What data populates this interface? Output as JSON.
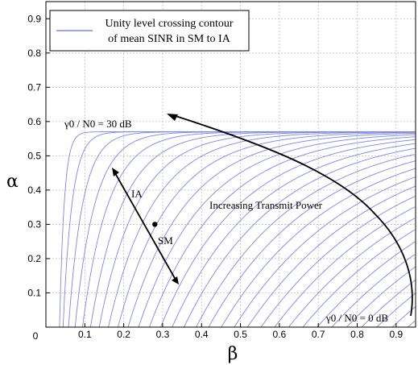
{
  "chart_data": {
    "type": "line",
    "title": "",
    "xlabel": "β",
    "ylabel": "α",
    "xlim": [
      0,
      0.95
    ],
    "ylim": [
      0,
      0.95
    ],
    "x_ticks": [
      "0",
      "0.1",
      "0.2",
      "0.3",
      "0.4",
      "0.5",
      "0.6",
      "0.7",
      "0.8",
      "0.9"
    ],
    "y_ticks": [
      "0.1",
      "0.2",
      "0.3",
      "0.4",
      "0.5",
      "0.6",
      "0.7",
      "0.8",
      "0.9"
    ],
    "grid": true,
    "legend": {
      "position": "top-left",
      "lines": [
        "Unity level crossing contour",
        "of mean SINR in SM to IA"
      ]
    },
    "series_color": "#7a88e8",
    "series_label": "Unity level crossing contour of mean SINR in SM to IA",
    "contours": {
      "count": 31,
      "asymptote_alpha": 0.57,
      "onset_beta_min": 0.035,
      "onset_beta_max": 0.93,
      "snr_db_range": [
        0,
        30
      ]
    },
    "annotations": {
      "top_curve_label": "γ0 / N0 = 30 dB",
      "bottom_curve_label": "γ0 / N0 = 0 dB",
      "arrow_text": "Increasing Transmit Power",
      "ia_label": "IA",
      "sm_label": "SM",
      "point": {
        "beta": 0.28,
        "alpha": 0.3
      }
    }
  }
}
